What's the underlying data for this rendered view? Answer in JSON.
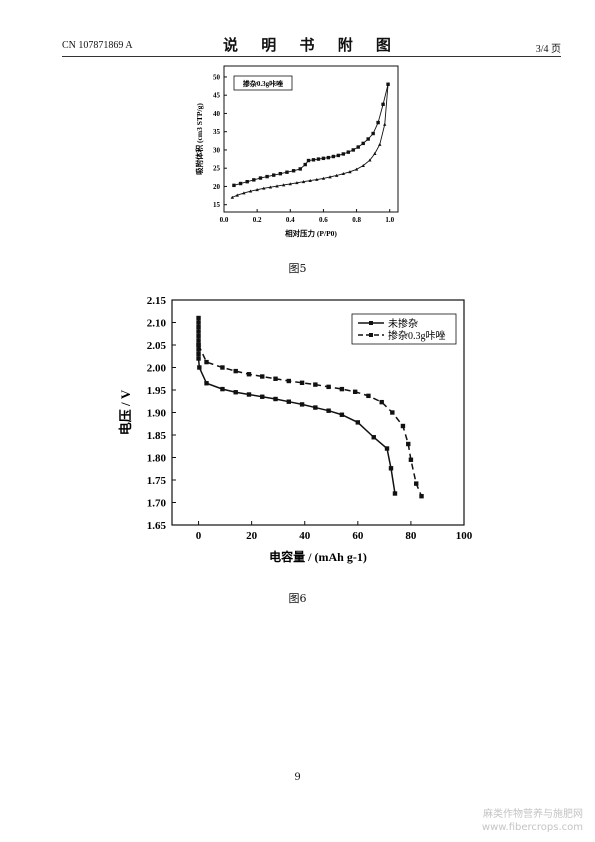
{
  "header": {
    "patent_no": "CN 107871869 A",
    "title": "说 明 书 附 图",
    "page_fraction": "3/4 页"
  },
  "figures": [
    {
      "caption": "图5",
      "chart_data": {
        "type": "line",
        "legend_box": "掺杂0.3g咔唑",
        "xlabel": "相对压力 (P/P0)",
        "ylabel": "吸附体积 (cm3 STP/g)",
        "xlim": [
          0.0,
          1.05
        ],
        "ylim": [
          13,
          53
        ],
        "x_ticks": [
          "0.0",
          "0.2",
          "0.4",
          "0.6",
          "0.8",
          "1.0"
        ],
        "y_ticks": [
          "15",
          "20",
          "25",
          "30",
          "35",
          "40",
          "45",
          "50"
        ],
        "series": [
          {
            "marker": "triangle",
            "x": [
              0.05,
              0.08,
              0.12,
              0.16,
              0.2,
              0.24,
              0.28,
              0.32,
              0.36,
              0.4,
              0.44,
              0.48,
              0.52,
              0.56,
              0.6,
              0.64,
              0.68,
              0.72,
              0.76,
              0.8,
              0.84,
              0.88,
              0.91,
              0.94,
              0.97,
              0.99
            ],
            "y": [
              17.0,
              17.6,
              18.2,
              18.7,
              19.1,
              19.5,
              19.8,
              20.1,
              20.4,
              20.7,
              21.0,
              21.3,
              21.6,
              21.9,
              22.2,
              22.6,
              23.0,
              23.5,
              24.0,
              24.7,
              25.7,
              27.2,
              29.0,
              31.5,
              37.0,
              48.0
            ]
          },
          {
            "marker": "square",
            "x": [
              0.99,
              0.96,
              0.93,
              0.9,
              0.87,
              0.84,
              0.81,
              0.78,
              0.75,
              0.72,
              0.69,
              0.66,
              0.63,
              0.6,
              0.57,
              0.54,
              0.51,
              0.49,
              0.46,
              0.42,
              0.38,
              0.34,
              0.3,
              0.26,
              0.22,
              0.18,
              0.14,
              0.1,
              0.06
            ],
            "y": [
              48.0,
              42.5,
              37.5,
              34.5,
              33.0,
              31.8,
              30.8,
              30.0,
              29.4,
              28.9,
              28.5,
              28.2,
              27.9,
              27.7,
              27.5,
              27.3,
              27.1,
              26.0,
              24.8,
              24.3,
              23.9,
              23.5,
              23.1,
              22.7,
              22.3,
              21.8,
              21.3,
              20.8,
              20.3
            ]
          }
        ]
      }
    },
    {
      "caption": "图6",
      "chart_data": {
        "type": "line",
        "xlabel": "电容量 / (mAh g-1)",
        "ylabel": "电压 / V",
        "xlim": [
          -10,
          100
        ],
        "ylim": [
          1.65,
          2.15
        ],
        "x_ticks": [
          "0",
          "20",
          "40",
          "60",
          "80",
          "100"
        ],
        "y_ticks": [
          "1.65",
          "1.70",
          "1.75",
          "1.80",
          "1.85",
          "1.90",
          "1.95",
          "2.00",
          "2.05",
          "2.10",
          "2.15"
        ],
        "legend_position": "top-right",
        "series": [
          {
            "name": "未掺杂",
            "style": "solid",
            "x": [
              0,
              0,
              0,
              0,
              0,
              0,
              0,
              0,
              0,
              0,
              0.3,
              3,
              9,
              14,
              19,
              24,
              29,
              34,
              39,
              44,
              49,
              54,
              60,
              66,
              71,
              72.5,
              74
            ],
            "y": [
              2.11,
              2.1,
              2.09,
              2.08,
              2.07,
              2.06,
              2.05,
              2.04,
              2.03,
              2.02,
              2.0,
              1.965,
              1.952,
              1.945,
              1.94,
              1.935,
              1.93,
              1.924,
              1.918,
              1.911,
              1.904,
              1.895,
              1.878,
              1.845,
              1.82,
              1.776,
              1.72
            ]
          },
          {
            "name": "掺杂0.3g咔唑",
            "style": "dashed",
            "x": [
              0,
              3,
              9,
              14,
              19,
              24,
              29,
              34,
              39,
              44,
              49,
              54,
              59,
              64,
              69,
              73,
              77,
              79,
              80,
              82,
              84
            ],
            "y": [
              2.05,
              2.012,
              2.0,
              1.992,
              1.985,
              1.98,
              1.975,
              1.97,
              1.966,
              1.962,
              1.957,
              1.952,
              1.946,
              1.937,
              1.923,
              1.9,
              1.87,
              1.83,
              1.795,
              1.742,
              1.714
            ]
          }
        ]
      }
    }
  ],
  "page_number": "9",
  "watermark": {
    "line1": "麻类作物营养与施肥网",
    "line2": "www.fibercrops.com"
  }
}
